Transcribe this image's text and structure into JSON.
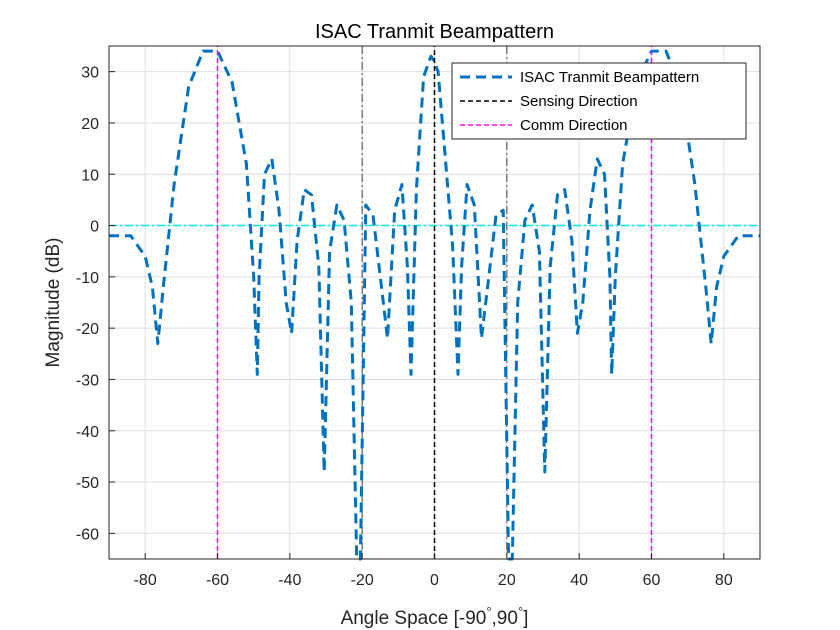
{
  "chart_data": {
    "type": "line",
    "title": "ISAC Tranmit Beampattern",
    "xlabel": "Angle Space [-90",
    "xlabel_mid": ",90",
    "xlabel_end": "]",
    "xlabel_degree": "°",
    "ylabel": "Magnitude (dB)",
    "xlim": [
      -90,
      90
    ],
    "ylim": [
      -65,
      35
    ],
    "xticks": [
      -80,
      -60,
      -40,
      -20,
      0,
      20,
      40,
      60,
      80
    ],
    "yticks": [
      30,
      20,
      10,
      0,
      -10,
      -20,
      -30,
      -40,
      -50,
      -60
    ],
    "xtick_labels": [
      "-80",
      "-60",
      "-40",
      "-20",
      "0",
      "20",
      "40",
      "60",
      "80"
    ],
    "ytick_labels": [
      "30",
      "20",
      "10",
      "0",
      "-10",
      "-20",
      "-30",
      "-40",
      "-50",
      "-60"
    ],
    "grid": true,
    "legend_position": "top-right",
    "series": [
      {
        "name": "ISAC Tranmit Beampattern",
        "color": "#0072BD",
        "style": "dashed",
        "x": [
          -90,
          -84,
          -80,
          -78,
          -76.5,
          -75,
          -72,
          -68,
          -64,
          -60,
          -56,
          -52,
          -50,
          -49,
          -48.5,
          -47,
          -45,
          -43,
          -41,
          -39.5,
          -38,
          -36,
          -34,
          -32,
          -30.5,
          -29,
          -27,
          -25,
          -23,
          -21.5,
          -20.5,
          -19,
          -17,
          -15,
          -13,
          -11,
          -9,
          -7.5,
          -6.5,
          -5,
          -3,
          -1,
          0,
          1,
          3,
          5,
          6.5,
          7.5,
          9,
          11,
          13,
          15,
          17,
          19,
          20.5,
          21.5,
          23,
          25,
          27,
          29,
          30.5,
          32,
          34,
          36,
          38,
          39.5,
          41,
          43,
          45,
          47,
          48.5,
          49,
          50,
          52,
          56,
          60,
          64,
          68,
          72,
          75,
          76.5,
          78,
          80,
          84,
          90
        ],
        "y": [
          -2,
          -2,
          -6,
          -12,
          -23,
          -12,
          8,
          27,
          34,
          34,
          28,
          12,
          -10,
          -29,
          -10,
          10,
          13,
          3,
          -15,
          -21,
          -3,
          7,
          6,
          -8,
          -48,
          -5,
          4,
          1,
          -15,
          -65,
          -65,
          4,
          2,
          -10,
          -22,
          3,
          8,
          -8,
          -29,
          7,
          29,
          33,
          32,
          30,
          13,
          -4,
          -29,
          -8,
          8,
          4,
          -22,
          -10,
          2,
          3,
          -65,
          -65,
          -15,
          1,
          4,
          -5,
          -48,
          -8,
          6,
          7,
          -3,
          -21,
          -15,
          3,
          13,
          10,
          -10,
          -29,
          -10,
          12,
          28,
          34,
          34,
          27,
          8,
          -12,
          -23,
          -12,
          -6,
          -2,
          -2
        ]
      },
      {
        "name": "Sensing Direction",
        "color": "#000000",
        "style": "dashed",
        "x": [
          0,
          0
        ],
        "y": [
          -65,
          35
        ]
      },
      {
        "name": "Comm Direction",
        "color": "#FF00FF",
        "style": "dashed",
        "x": [
          -60,
          60
        ],
        "y": [
          -65,
          35
        ]
      }
    ],
    "unlabeled_lines": [
      {
        "x": -20,
        "color": "#404040",
        "style": "dashdot"
      },
      {
        "x": 20,
        "color": "#404040",
        "style": "dashdot"
      },
      {
        "y": 0,
        "color": "#00E5EE",
        "style": "dashdot"
      }
    ]
  }
}
